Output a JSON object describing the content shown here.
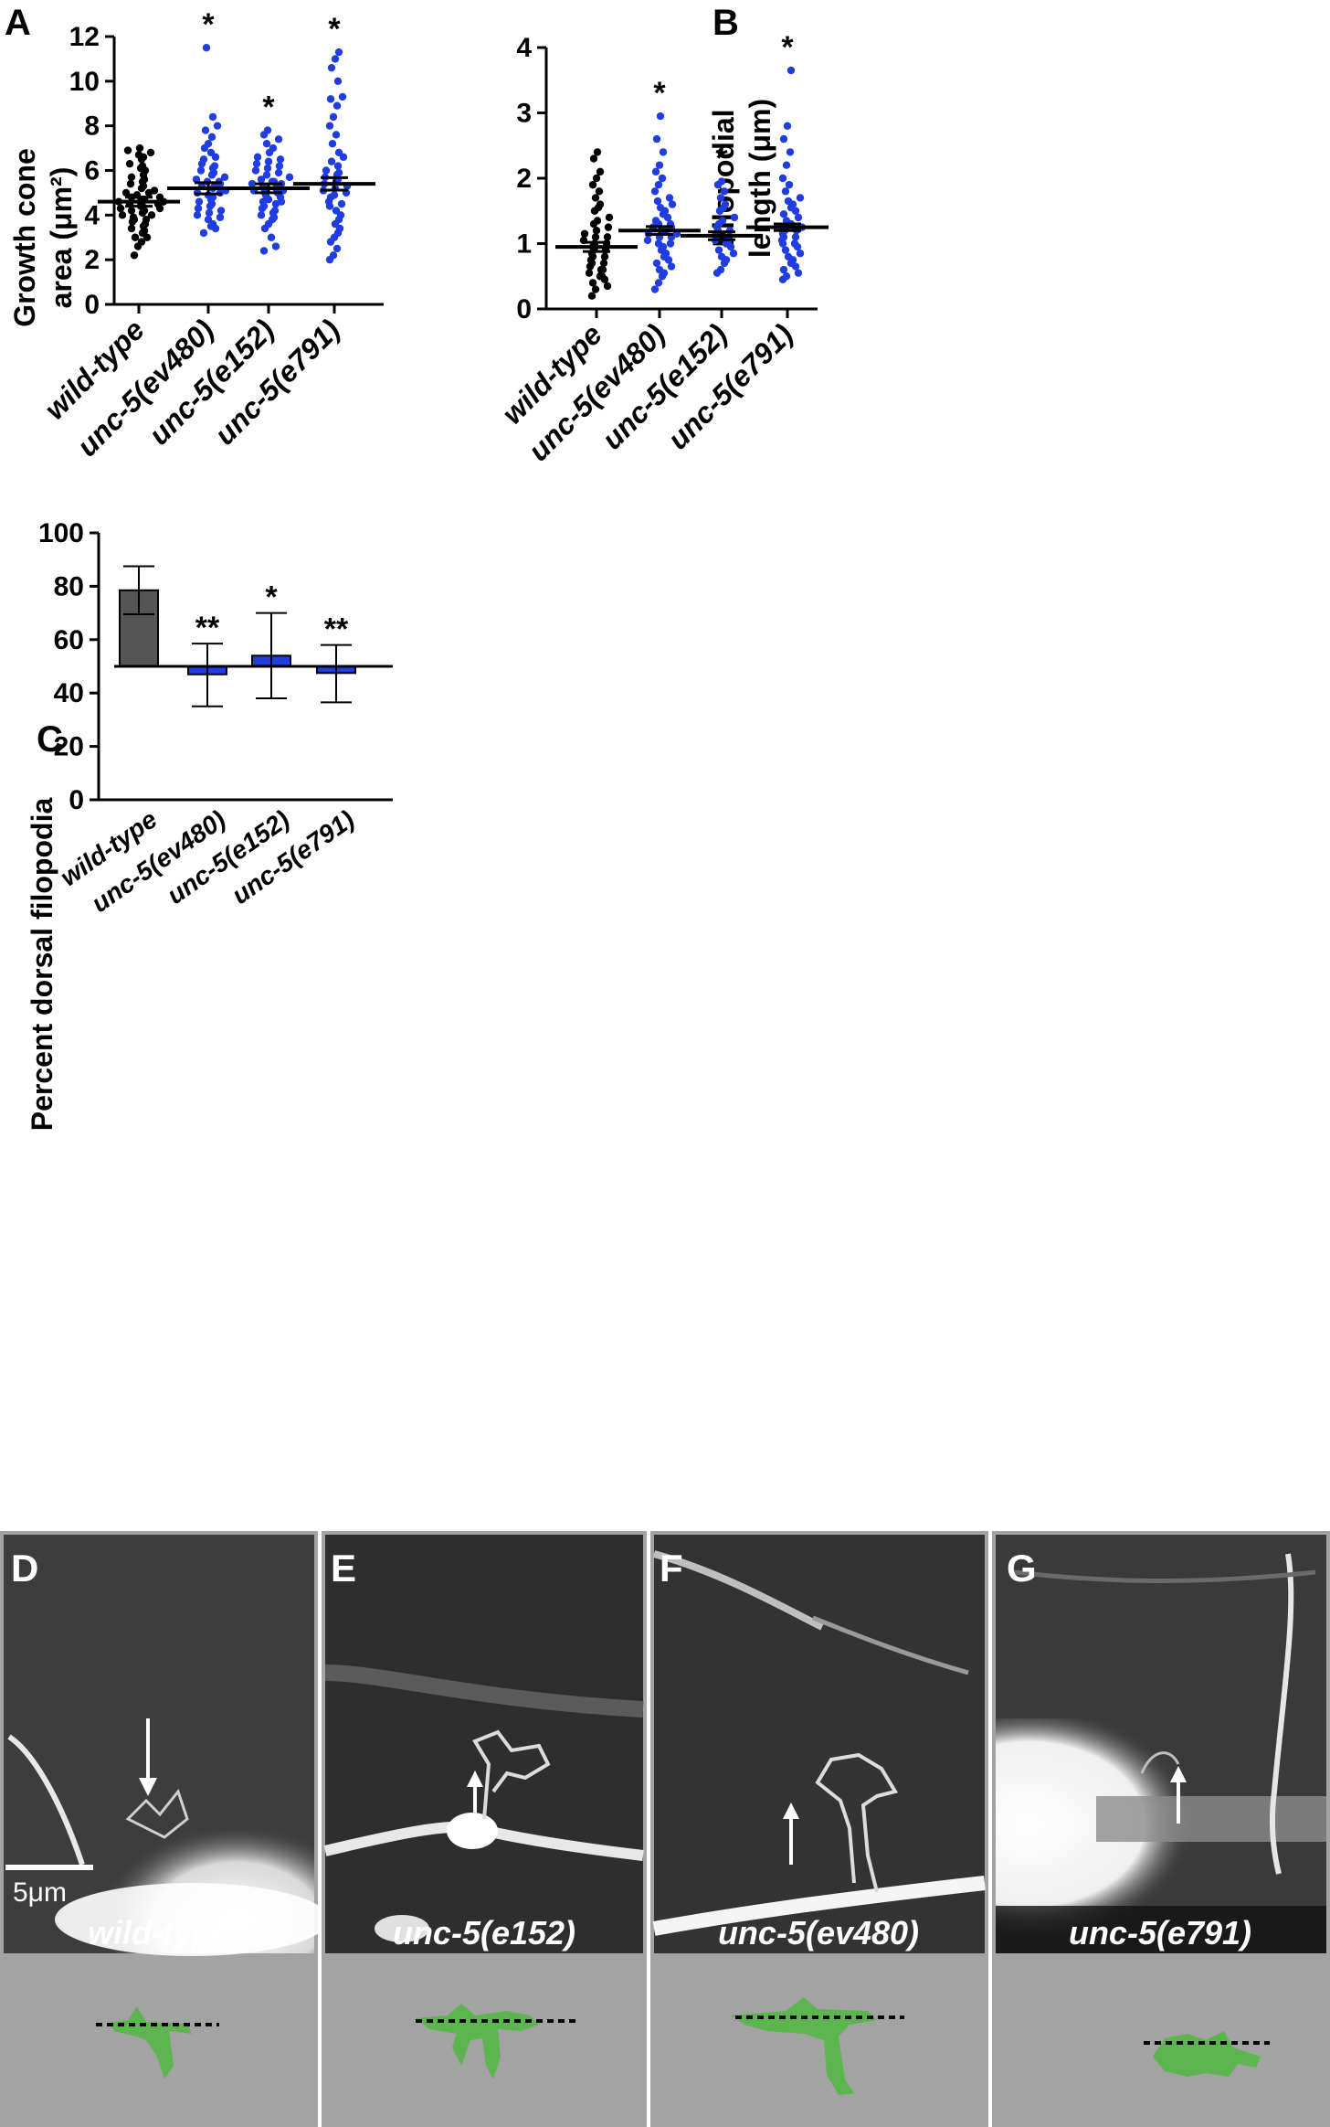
{
  "colors": {
    "wild_type_points": "#000000",
    "mutant_points": "#1f3de0",
    "wild_type_bar": "#555555",
    "mutant_bar": "#1f3de0",
    "silhouette": "#5cb54e",
    "image_background": "#a3a3a3"
  },
  "chart_data": [
    {
      "panel": "A",
      "type": "scatter",
      "ylabel_line1": "Growth cone",
      "ylabel_line2": "area (μm²)",
      "ylim": [
        0,
        12
      ],
      "yticks": [
        "0",
        "2",
        "4",
        "6",
        "8",
        "10",
        "12"
      ],
      "categories": [
        "wild-type",
        "unc-5(ev480)",
        "unc-5(e152)",
        "unc-5(e791)"
      ],
      "means": [
        4.6,
        5.2,
        5.2,
        5.4
      ],
      "sem": [
        0.2,
        0.25,
        0.2,
        0.28
      ],
      "significance": [
        "",
        "*",
        "*",
        "*"
      ],
      "series": [
        {
          "values": [
            2.2,
            2.6,
            2.8,
            3.0,
            3.0,
            3.2,
            3.3,
            3.4,
            3.5,
            3.6,
            3.7,
            3.8,
            3.8,
            3.9,
            4.0,
            4.0,
            4.1,
            4.2,
            4.2,
            4.3,
            4.3,
            4.4,
            4.4,
            4.5,
            4.5,
            4.6,
            4.6,
            4.7,
            4.7,
            4.8,
            4.8,
            4.9,
            5.0,
            5.0,
            5.1,
            5.2,
            5.3,
            5.4,
            5.5,
            5.6,
            5.7,
            5.8,
            6.0,
            6.1,
            6.2,
            6.3,
            6.5,
            6.6,
            6.7,
            6.8,
            6.9,
            7.0
          ]
        },
        {
          "values": [
            3.2,
            3.4,
            3.5,
            3.6,
            3.8,
            3.9,
            4.0,
            4.1,
            4.2,
            4.3,
            4.4,
            4.5,
            4.6,
            4.7,
            4.8,
            4.9,
            5.0,
            5.0,
            5.1,
            5.2,
            5.3,
            5.3,
            5.4,
            5.5,
            5.5,
            5.6,
            5.7,
            5.8,
            5.9,
            6.0,
            6.1,
            6.2,
            6.3,
            6.5,
            6.6,
            6.8,
            7.0,
            7.2,
            7.5,
            7.8,
            8.0,
            8.4,
            11.5
          ]
        },
        {
          "values": [
            2.4,
            2.6,
            3.0,
            3.4,
            3.6,
            3.8,
            3.9,
            4.0,
            4.1,
            4.2,
            4.3,
            4.4,
            4.5,
            4.6,
            4.6,
            4.7,
            4.8,
            4.9,
            5.0,
            5.0,
            5.1,
            5.1,
            5.2,
            5.2,
            5.3,
            5.4,
            5.4,
            5.5,
            5.5,
            5.6,
            5.7,
            5.8,
            5.9,
            6.0,
            6.1,
            6.2,
            6.3,
            6.4,
            6.5,
            6.6,
            6.8,
            7.0,
            7.2,
            7.4,
            7.6,
            7.8
          ]
        },
        {
          "values": [
            2.0,
            2.2,
            2.5,
            2.8,
            3.0,
            3.2,
            3.4,
            3.6,
            3.8,
            4.0,
            4.2,
            4.4,
            4.5,
            4.6,
            4.8,
            4.9,
            5.0,
            5.1,
            5.2,
            5.3,
            5.4,
            5.5,
            5.6,
            5.7,
            5.8,
            5.9,
            6.0,
            6.2,
            6.4,
            6.6,
            6.8,
            7.2,
            7.6,
            8.0,
            8.4,
            8.9,
            9.2,
            9.3,
            10.0,
            10.6,
            11.0,
            11.3
          ]
        }
      ]
    },
    {
      "panel": "B",
      "type": "scatter",
      "ylabel_line1": "Filopodial",
      "ylabel_line2": "length  (μm)",
      "ylim": [
        0,
        4
      ],
      "yticks": [
        "0",
        "1",
        "2",
        "3",
        "4"
      ],
      "categories": [
        "wild-type",
        "unc-5(ev480)",
        "unc-5(e152)",
        "unc-5(e791)"
      ],
      "means": [
        0.95,
        1.2,
        1.12,
        1.25
      ],
      "sem": [
        0.07,
        0.06,
        0.06,
        0.05
      ],
      "significance": [
        "",
        "*",
        "*",
        "*"
      ],
      "series": [
        {
          "values": [
            0.2,
            0.3,
            0.35,
            0.4,
            0.45,
            0.5,
            0.5,
            0.55,
            0.6,
            0.6,
            0.65,
            0.7,
            0.7,
            0.75,
            0.8,
            0.8,
            0.85,
            0.9,
            0.9,
            0.95,
            1.0,
            1.0,
            1.05,
            1.1,
            1.1,
            1.15,
            1.2,
            1.25,
            1.3,
            1.35,
            1.4,
            1.5,
            1.55,
            1.6,
            1.7,
            1.8,
            1.9,
            2.0,
            2.1,
            2.3,
            2.4
          ]
        },
        {
          "values": [
            0.3,
            0.4,
            0.5,
            0.55,
            0.6,
            0.65,
            0.7,
            0.75,
            0.8,
            0.85,
            0.9,
            0.95,
            1.0,
            1.0,
            1.05,
            1.1,
            1.1,
            1.15,
            1.15,
            1.2,
            1.2,
            1.25,
            1.25,
            1.3,
            1.3,
            1.35,
            1.4,
            1.45,
            1.5,
            1.55,
            1.6,
            1.65,
            1.7,
            1.8,
            1.9,
            2.0,
            2.1,
            2.2,
            2.4,
            2.6,
            2.95
          ]
        },
        {
          "values": [
            0.55,
            0.6,
            0.7,
            0.75,
            0.8,
            0.85,
            0.9,
            0.95,
            1.0,
            1.0,
            1.05,
            1.1,
            1.1,
            1.15,
            1.2,
            1.2,
            1.25,
            1.3,
            1.35,
            1.4,
            1.5,
            1.55,
            1.6,
            1.7,
            1.8,
            1.9,
            1.95
          ]
        },
        {
          "values": [
            0.45,
            0.5,
            0.55,
            0.6,
            0.65,
            0.7,
            0.75,
            0.8,
            0.85,
            0.9,
            0.95,
            1.0,
            1.0,
            1.05,
            1.1,
            1.1,
            1.15,
            1.2,
            1.2,
            1.25,
            1.25,
            1.3,
            1.3,
            1.35,
            1.4,
            1.45,
            1.5,
            1.55,
            1.6,
            1.65,
            1.7,
            1.8,
            1.9,
            2.0,
            2.2,
            2.4,
            2.6,
            2.8,
            3.65
          ]
        }
      ]
    },
    {
      "panel": "C",
      "type": "bar",
      "ylabel": "Percent dorsal filopodia",
      "ylim": [
        0,
        100
      ],
      "yticks": [
        "0",
        "20",
        "40",
        "60",
        "80",
        "100"
      ],
      "baseline": 50,
      "categories": [
        "wild-type",
        "unc-5(ev480)",
        "unc-5(e152)",
        "unc-5(e791)"
      ],
      "values": [
        78.5,
        47,
        54,
        47.5
      ],
      "err_low": [
        69.5,
        35,
        38,
        36.5
      ],
      "err_high": [
        87.5,
        58.5,
        70,
        58
      ],
      "significance": [
        "",
        "**",
        "*",
        "**"
      ]
    }
  ],
  "micrographs": [
    {
      "letter": "D",
      "genotype": "wild-type",
      "scale_bar": "5μm"
    },
    {
      "letter": "E",
      "genotype": "unc-5(e152)"
    },
    {
      "letter": "F",
      "genotype": "unc-5(ev480)"
    },
    {
      "letter": "G",
      "genotype": "unc-5(e791)"
    }
  ]
}
